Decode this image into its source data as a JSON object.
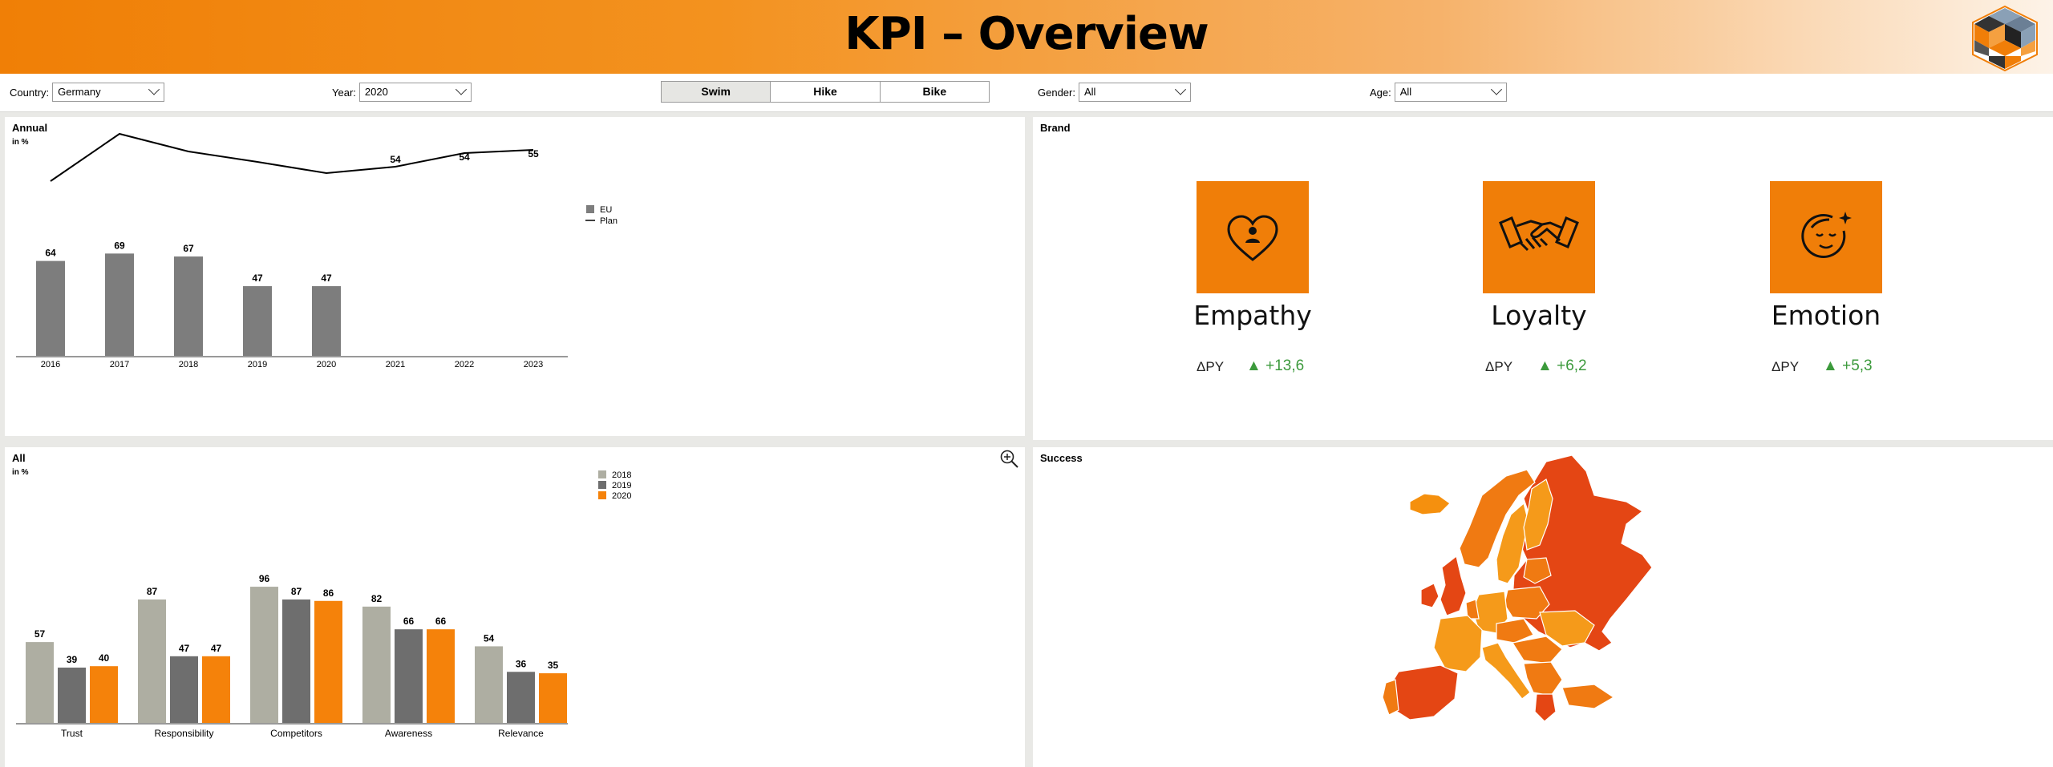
{
  "header": {
    "title": "KPI – Overview"
  },
  "filters": {
    "country": {
      "label": "Country:",
      "value": "Germany"
    },
    "year": {
      "label": "Year:",
      "value": "2020"
    },
    "gender": {
      "label": "Gender:",
      "value": "All"
    },
    "age": {
      "label": "Age:",
      "value": "All"
    }
  },
  "activity_tabs": [
    {
      "label": "Swim",
      "active": true
    },
    {
      "label": "Hike",
      "active": false
    },
    {
      "label": "Bike",
      "active": false
    }
  ],
  "annual": {
    "title": "Annual",
    "unit": "in %",
    "chart_data": {
      "type": "bar",
      "categories": [
        "2016",
        "2017",
        "2018",
        "2019",
        "2020",
        "2021",
        "2022",
        "2023"
      ],
      "series": [
        {
          "name": "EU",
          "type": "bar",
          "values": [
            64,
            69,
            67,
            47,
            47,
            null,
            null,
            null
          ],
          "color": "#7d7d7d"
        },
        {
          "name": "Plan",
          "type": "line",
          "values": [
            null,
            null,
            null,
            null,
            null,
            54,
            54,
            55
          ],
          "color": "#000000"
        }
      ],
      "legend": [
        "EU",
        "Plan"
      ],
      "legend_position": "top-right"
    }
  },
  "brand": {
    "title": "Brand",
    "tiles": [
      {
        "name": "Empathy",
        "dpy_label": "ΔPY",
        "delta": "+13,6",
        "icon": "heart-person-icon"
      },
      {
        "name": "Loyalty",
        "dpy_label": "ΔPY",
        "delta": "+6,2",
        "icon": "handshake-icon"
      },
      {
        "name": "Emotion",
        "dpy_label": "ΔPY",
        "delta": "+5,3",
        "icon": "face-sparkle-icon"
      }
    ],
    "accent_color": "#f07e08",
    "positive_color": "#3c9a3c"
  },
  "all": {
    "title": "All",
    "unit": "in %",
    "chart_data": {
      "type": "bar",
      "categories": [
        "Trust",
        "Responsibility",
        "Competitors",
        "Awareness",
        "Relevance"
      ],
      "series": [
        {
          "name": "2018",
          "values": [
            57,
            87,
            96,
            82,
            54
          ],
          "color": "#aeaea2"
        },
        {
          "name": "2019",
          "values": [
            39,
            47,
            87,
            66,
            36
          ],
          "color": "#6e6e6e"
        },
        {
          "name": "2020",
          "values": [
            40,
            47,
            86,
            66,
            35
          ],
          "color": "#f5820a"
        }
      ],
      "legend_position": "top-right"
    }
  },
  "success": {
    "title": "Success",
    "map_type": "choropleth-europe"
  }
}
